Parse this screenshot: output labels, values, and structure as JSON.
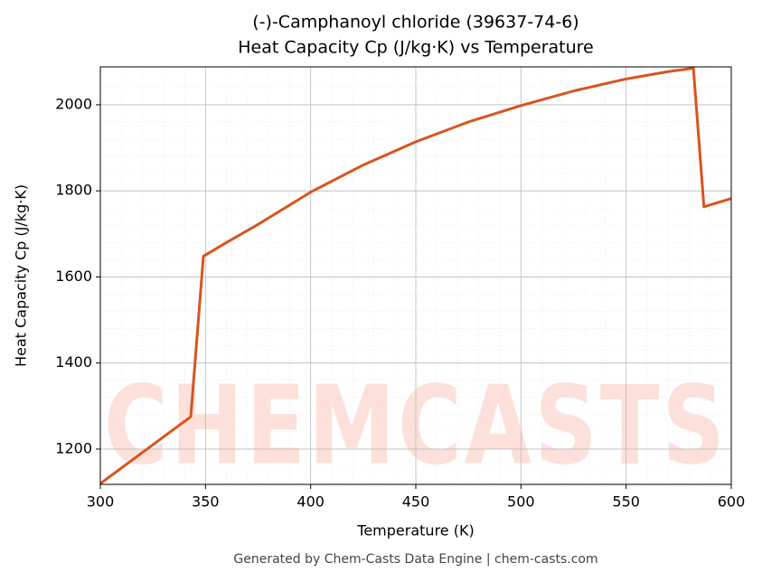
{
  "chart_data": {
    "type": "line",
    "title": "(-)-Camphanoyl chloride (39637-74-6)",
    "subtitle": "Heat Capacity Cp (J/kg·K) vs Temperature",
    "x_label": "Temperature (K)",
    "y_label": "Heat Capacity Cp (J/kg·K)",
    "footer": "Generated by Chem-Casts Data Engine | chem-casts.com",
    "watermark": "CHEMCASTS",
    "x": [
      300,
      343,
      349,
      360,
      375,
      400,
      425,
      450,
      475,
      500,
      525,
      550,
      570,
      582,
      587,
      600
    ],
    "series": [
      {
        "name": "Cp",
        "color": "#d9541e",
        "values": [
          1120,
          1275,
          1648,
          1680,
          1722,
          1797,
          1860,
          1914,
          1960,
          1998,
          2032,
          2060,
          2077,
          2085,
          1763,
          1782
        ]
      }
    ],
    "xlim": [
      300,
      600
    ],
    "xticks": [
      300,
      350,
      400,
      450,
      500,
      550,
      600
    ],
    "ylim": [
      1118,
      2088
    ],
    "yticks": [
      1200,
      1400,
      1600,
      1800,
      2000
    ],
    "grid": true
  }
}
